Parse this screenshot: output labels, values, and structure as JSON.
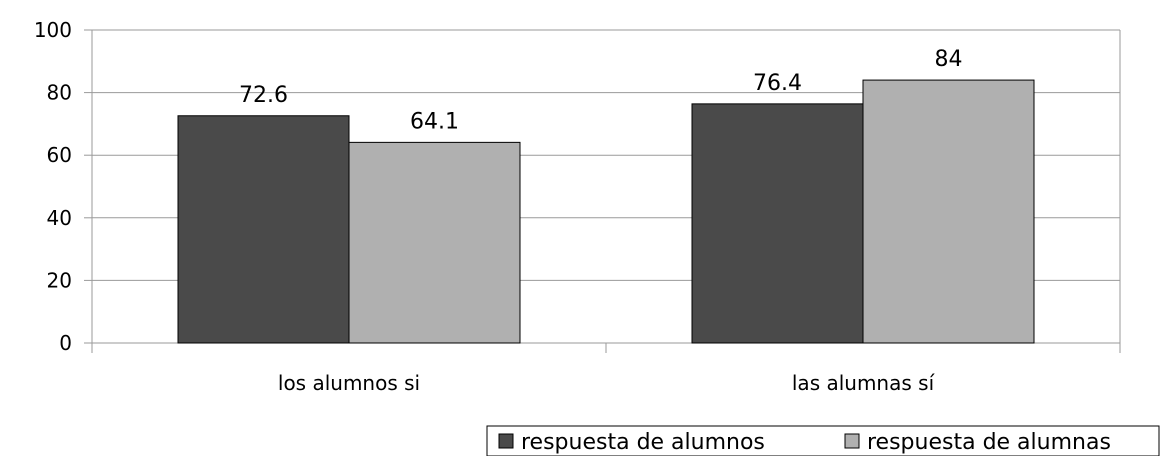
{
  "chart_data": {
    "type": "bar",
    "categories": [
      "los alumnos si",
      "las alumnas sí"
    ],
    "series": [
      {
        "name": "respuesta de alumnos",
        "values": [
          72.6,
          76.4
        ],
        "color": "#4a4a4a"
      },
      {
        "name": "respuesta de alumnas",
        "values": [
          64.1,
          84
        ],
        "color": "#b0b0b0"
      }
    ],
    "data_labels": [
      [
        "72.6",
        "76.4"
      ],
      [
        "64.1",
        "84"
      ]
    ],
    "yticks": [
      "0",
      "20",
      "40",
      "60",
      "80",
      "100"
    ],
    "ylim": [
      0,
      100
    ],
    "grid": true,
    "legend_position": "bottom-right",
    "title": "",
    "xlabel": "",
    "ylabel": ""
  }
}
